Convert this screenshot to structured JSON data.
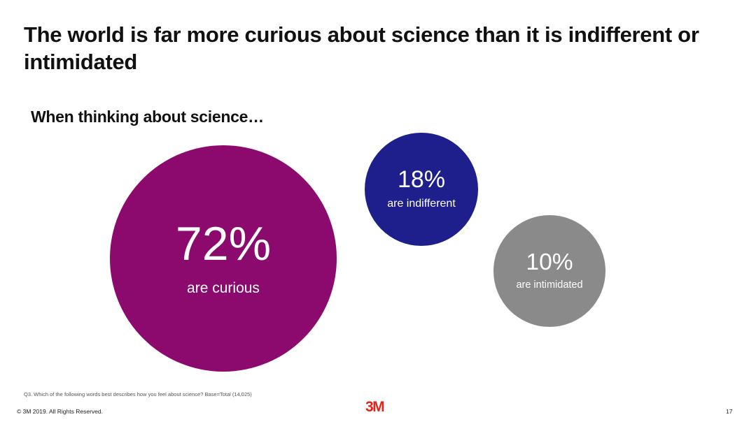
{
  "slide": {
    "title": "The world is far more curious about science than it is indifferent or intimidated",
    "subtitle": "When thinking about science…",
    "footnote": "Q3. Which of the following words best describes how you feel about science? Base=Total (14,025)",
    "copyright": "© 3M 2019.    All Rights Reserved.",
    "logo_text": "3M",
    "page_number": "17"
  },
  "chart_data": {
    "type": "bubble",
    "series": [
      {
        "value": 72,
        "display": "72%",
        "label": "are curious",
        "color": "#8c0a6e"
      },
      {
        "value": 18,
        "display": "18%",
        "label": "are indifferent",
        "color": "#1e1e8c"
      },
      {
        "value": 10,
        "display": "10%",
        "label": "are intimidated",
        "color": "#8a8a8a"
      }
    ]
  },
  "colors": {
    "brand_red": "#e2231a"
  }
}
